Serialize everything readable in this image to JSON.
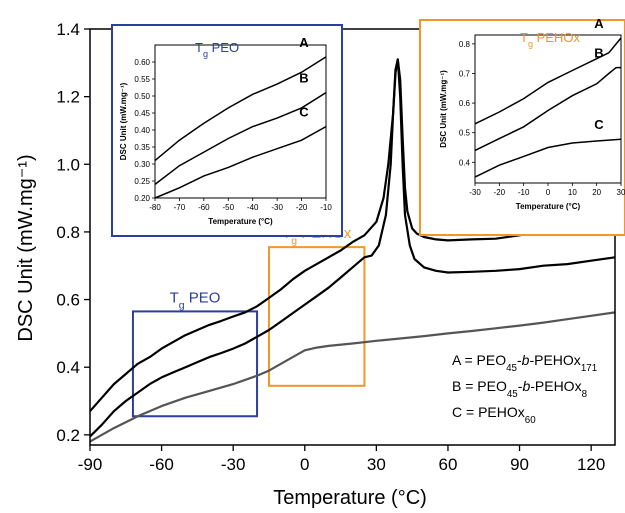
{
  "chart_data": {
    "type": "line",
    "xlabel": "Temperature (°C)",
    "ylabel": "DSC Unit (mW.mg⁻¹)",
    "xlim": [
      -90,
      130
    ],
    "ylim": [
      0.17,
      1.4
    ],
    "xticks": [
      -90,
      -60,
      -30,
      0,
      30,
      60,
      90,
      120
    ],
    "yticks": [
      0.2,
      0.4,
      0.6,
      0.8,
      1.0,
      1.2,
      1.4
    ],
    "xtick_labels": [
      "-90",
      "-60",
      "-30",
      "0",
      "30",
      "60",
      "90",
      "120"
    ],
    "ytick_labels": [
      "0.2",
      "0.4",
      "0.6",
      "0.8",
      "1.0",
      "1.2",
      "1.4"
    ],
    "series": [
      {
        "name": "A",
        "color": "#000000",
        "x": [
          -90,
          -85,
          -80,
          -75,
          -70,
          -65,
          -60,
          -55,
          -50,
          -45,
          -40,
          -35,
          -30,
          -25,
          -20,
          -15,
          -10,
          -5,
          0,
          5,
          10,
          15,
          20,
          25,
          30,
          33,
          35,
          37,
          38,
          39,
          40,
          41,
          42,
          43,
          45,
          47,
          50,
          55,
          60,
          70,
          80,
          90,
          98,
          100,
          102,
          104,
          110,
          120,
          130
        ],
        "y": [
          0.27,
          0.31,
          0.35,
          0.38,
          0.41,
          0.43,
          0.455,
          0.475,
          0.495,
          0.51,
          0.525,
          0.537,
          0.55,
          0.562,
          0.58,
          0.605,
          0.63,
          0.66,
          0.685,
          0.705,
          0.725,
          0.745,
          0.77,
          0.79,
          0.83,
          0.9,
          1.0,
          1.15,
          1.27,
          1.31,
          1.25,
          1.08,
          0.93,
          0.86,
          0.81,
          0.795,
          0.785,
          0.778,
          0.775,
          0.778,
          0.78,
          0.79,
          0.8,
          0.805,
          0.81,
          0.825,
          0.83,
          0.84,
          0.848
        ]
      },
      {
        "name": "B",
        "color": "#000000",
        "x": [
          -90,
          -85,
          -80,
          -75,
          -70,
          -65,
          -60,
          -55,
          -50,
          -45,
          -40,
          -35,
          -30,
          -25,
          -20,
          -15,
          -10,
          -5,
          0,
          5,
          10,
          15,
          20,
          25,
          28,
          31,
          34,
          36,
          37,
          38,
          39,
          40,
          41,
          42,
          44,
          46,
          50,
          55,
          60,
          70,
          80,
          90,
          100,
          110,
          120,
          130
        ],
        "y": [
          0.195,
          0.23,
          0.27,
          0.3,
          0.325,
          0.35,
          0.37,
          0.385,
          0.4,
          0.415,
          0.43,
          0.442,
          0.455,
          0.47,
          0.49,
          0.51,
          0.535,
          0.56,
          0.585,
          0.61,
          0.635,
          0.665,
          0.695,
          0.725,
          0.73,
          0.76,
          0.85,
          1.0,
          1.15,
          1.28,
          1.31,
          1.2,
          1.0,
          0.85,
          0.76,
          0.72,
          0.695,
          0.685,
          0.68,
          0.682,
          0.685,
          0.69,
          0.7,
          0.705,
          0.715,
          0.725
        ]
      },
      {
        "name": "C",
        "color": "#555555",
        "x": [
          -90,
          -80,
          -70,
          -60,
          -50,
          -40,
          -30,
          -20,
          -15,
          -10,
          -5,
          0,
          5,
          10,
          20,
          30,
          40,
          50,
          60,
          70,
          80,
          90,
          100,
          110,
          120,
          130
        ],
        "y": [
          0.18,
          0.22,
          0.255,
          0.285,
          0.31,
          0.33,
          0.35,
          0.375,
          0.39,
          0.41,
          0.43,
          0.45,
          0.458,
          0.463,
          0.47,
          0.478,
          0.485,
          0.492,
          0.5,
          0.507,
          0.515,
          0.523,
          0.532,
          0.542,
          0.552,
          0.562
        ]
      }
    ],
    "annotations": [
      {
        "id": "tg-peo",
        "main": "T",
        "sub": "g",
        "rest": " PEO",
        "color": "#2c3e9e",
        "region": {
          "x": [
            -72,
            -20
          ],
          "y": [
            0.255,
            0.565
          ]
        }
      },
      {
        "id": "tg-pehox",
        "main": "T",
        "sub": "g",
        "rest": " PEHOx",
        "color": "#f0962a",
        "region": {
          "x": [
            -15,
            25
          ],
          "y": [
            0.345,
            0.755
          ]
        }
      }
    ],
    "legend": [
      {
        "parts": [
          {
            "t": "A = PEO"
          },
          {
            "t": "45",
            "sub": true
          },
          {
            "t": "-"
          },
          {
            "t": "b",
            "italic": true
          },
          {
            "t": "-PEHOx"
          },
          {
            "t": "171",
            "sub": true
          }
        ]
      },
      {
        "parts": [
          {
            "t": "B = PEO"
          },
          {
            "t": "45",
            "sub": true
          },
          {
            "t": "-"
          },
          {
            "t": "b",
            "italic": true
          },
          {
            "t": "-PEHOx"
          },
          {
            "t": "8",
            "sub": true
          }
        ]
      },
      {
        "parts": [
          {
            "t": "C = PEHOx"
          },
          {
            "t": "60",
            "sub": true
          }
        ]
      }
    ],
    "insets": [
      {
        "id": "inset-peo",
        "frame_color": "#2c3e9e",
        "title_main": "T",
        "title_sub": "g",
        "title_rest": " PEO",
        "title_color": "#2c3e9e",
        "xlabel": "Temperature (°C)",
        "ylabel": "DSC Unit (mW.mg⁻¹)",
        "xlim": [
          -80,
          -10
        ],
        "ylim": [
          0.2,
          0.65
        ],
        "xticks": [
          -80,
          -70,
          -60,
          -50,
          -40,
          -30,
          -20,
          -10
        ],
        "yticks": [
          0.2,
          0.25,
          0.3,
          0.35,
          0.4,
          0.45,
          0.5,
          0.55,
          0.6
        ],
        "xtick_labels": [
          "-80",
          "-70",
          "-60",
          "-50",
          "-40",
          "-30",
          "-20",
          "-10"
        ],
        "ytick_labels": [
          "0.20",
          "0.25",
          "0.30",
          "0.35",
          "0.40",
          "0.45",
          "0.50",
          "0.55",
          "0.60"
        ],
        "series": [
          {
            "name": "A",
            "x": [
              -80,
              -70,
              -60,
              -50,
              -40,
              -30,
              -20,
              -10
            ],
            "y": [
              0.31,
              0.37,
              0.42,
              0.465,
              0.505,
              0.535,
              0.57,
              0.615
            ]
          },
          {
            "name": "B",
            "x": [
              -80,
              -70,
              -60,
              -50,
              -40,
              -30,
              -20,
              -10
            ],
            "y": [
              0.24,
              0.295,
              0.335,
              0.375,
              0.41,
              0.435,
              0.465,
              0.51
            ]
          },
          {
            "name": "C",
            "x": [
              -80,
              -70,
              -60,
              -50,
              -40,
              -30,
              -20,
              -10
            ],
            "y": [
              0.2,
              0.23,
              0.265,
              0.29,
              0.32,
              0.345,
              0.37,
              0.41
            ]
          }
        ]
      },
      {
        "id": "inset-pehox",
        "frame_color": "#f0962a",
        "title_main": "T",
        "title_sub": "g",
        "title_rest": " PEHOx",
        "title_color": "#f0962a",
        "xlabel": "Temperature (°C)",
        "ylabel": "DSC Unit (mW.mg⁻¹)",
        "xlim": [
          -30,
          30
        ],
        "ylim": [
          0.33,
          0.83
        ],
        "xticks": [
          -30,
          -20,
          -10,
          0,
          10,
          20,
          30
        ],
        "yticks": [
          0.4,
          0.5,
          0.6,
          0.7,
          0.8
        ],
        "xtick_labels": [
          "-30",
          "-20",
          "-10",
          "0",
          "10",
          "20",
          "30"
        ],
        "ytick_labels": [
          "0.4",
          "0.5",
          "0.6",
          "0.7",
          "0.8"
        ],
        "series": [
          {
            "name": "A",
            "x": [
              -30,
              -20,
              -10,
              0,
              10,
              20,
              25,
              30
            ],
            "y": [
              0.53,
              0.57,
              0.615,
              0.67,
              0.71,
              0.75,
              0.77,
              0.82
            ]
          },
          {
            "name": "B",
            "x": [
              -30,
              -20,
              -10,
              0,
              10,
              20,
              25,
              28,
              30
            ],
            "y": [
              0.44,
              0.48,
              0.52,
              0.575,
              0.625,
              0.665,
              0.7,
              0.72,
              0.72
            ]
          },
          {
            "name": "C",
            "x": [
              -30,
              -20,
              -10,
              0,
              10,
              20,
              30
            ],
            "y": [
              0.35,
              0.39,
              0.42,
              0.45,
              0.465,
              0.472,
              0.478
            ]
          }
        ]
      }
    ]
  }
}
